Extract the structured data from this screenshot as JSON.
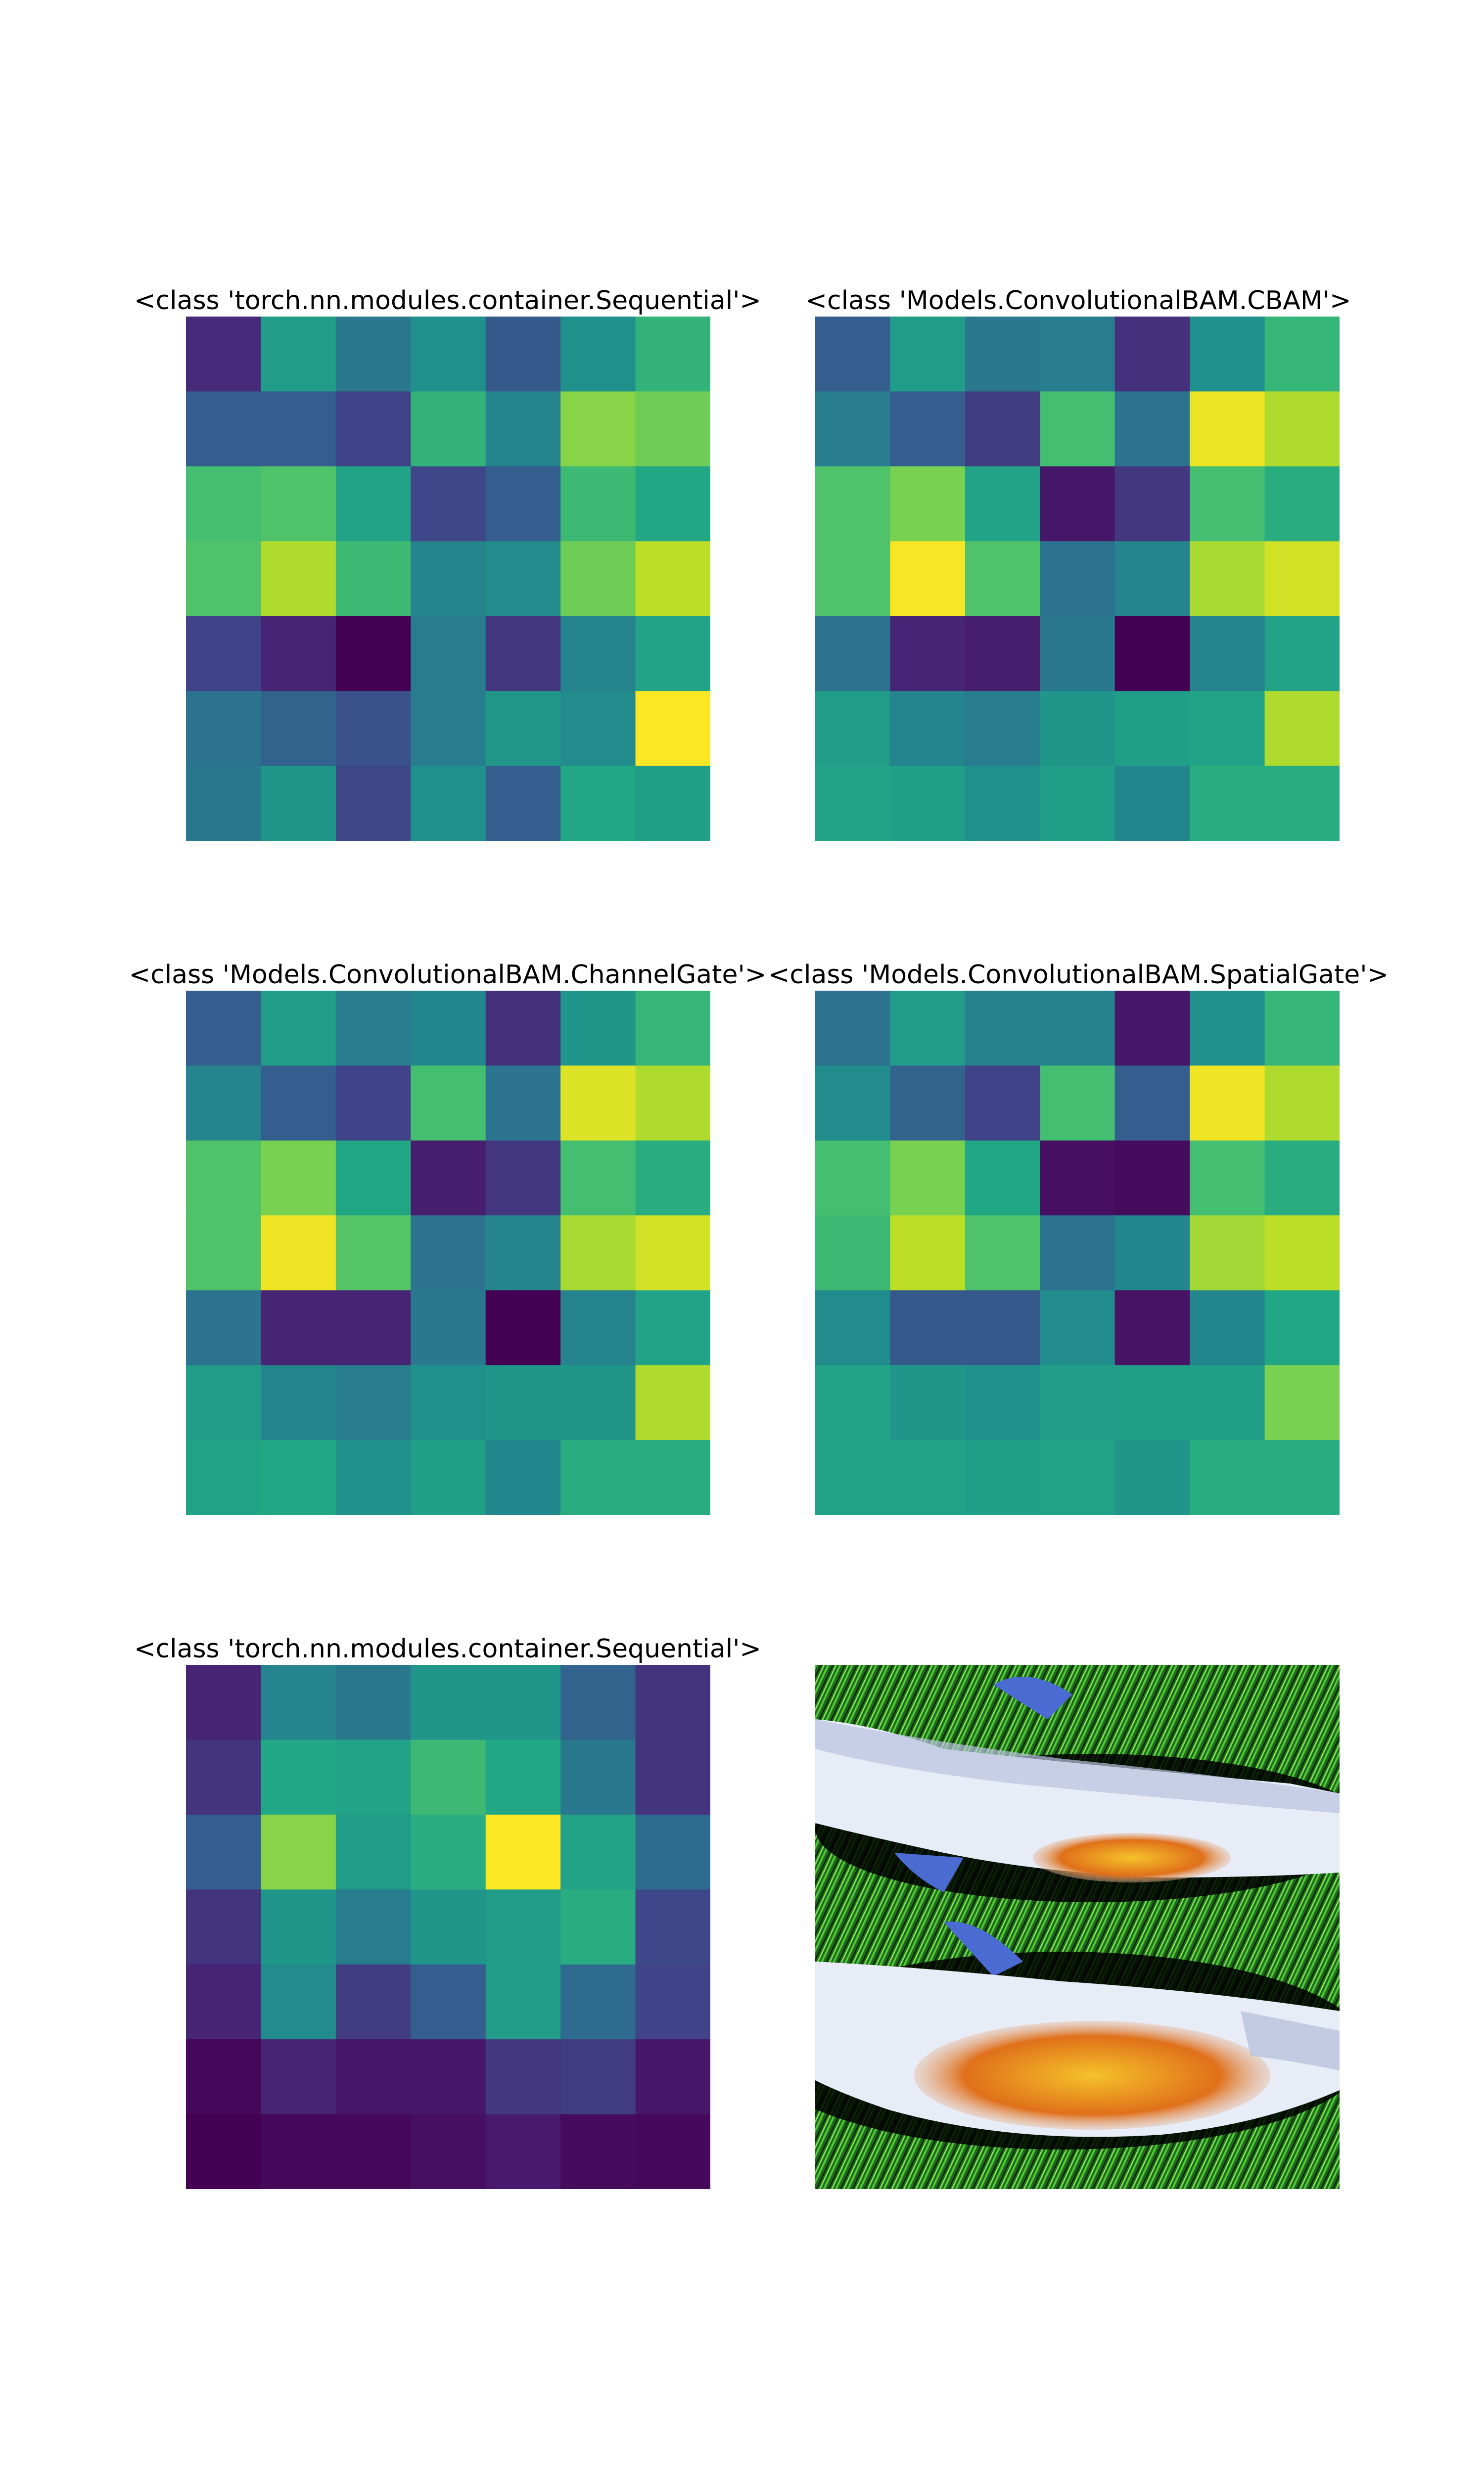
{
  "figure": {
    "colormap": "viridis",
    "value_range": [
      0,
      1
    ]
  },
  "chart_data": [
    {
      "type": "heatmap",
      "title": "<class 'torch.nn.modules.container.Sequential'>",
      "rows": 7,
      "cols": 7,
      "values": [
        [
          0.12,
          0.55,
          0.4,
          0.5,
          0.28,
          0.5,
          0.65
        ],
        [
          0.3,
          0.3,
          0.2,
          0.65,
          0.45,
          0.82,
          0.78
        ],
        [
          0.7,
          0.72,
          0.58,
          0.22,
          0.3,
          0.68,
          0.6
        ],
        [
          0.72,
          0.88,
          0.68,
          0.45,
          0.48,
          0.78,
          0.9
        ],
        [
          0.2,
          0.1,
          0.0,
          0.42,
          0.16,
          0.45,
          0.58
        ],
        [
          0.38,
          0.32,
          0.25,
          0.42,
          0.53,
          0.48,
          1.0
        ],
        [
          0.4,
          0.52,
          0.22,
          0.5,
          0.3,
          0.6,
          0.56
        ]
      ]
    },
    {
      "type": "heatmap",
      "title": "<class 'Models.ConvolutionalBAM.CBAM'>",
      "rows": 7,
      "cols": 7,
      "values": [
        [
          0.3,
          0.55,
          0.4,
          0.42,
          0.14,
          0.5,
          0.66
        ],
        [
          0.42,
          0.3,
          0.18,
          0.7,
          0.38,
          0.97,
          0.88
        ],
        [
          0.72,
          0.8,
          0.58,
          0.06,
          0.16,
          0.7,
          0.62
        ],
        [
          0.72,
          0.99,
          0.72,
          0.38,
          0.45,
          0.87,
          0.93
        ],
        [
          0.38,
          0.1,
          0.08,
          0.4,
          0.0,
          0.45,
          0.58
        ],
        [
          0.55,
          0.45,
          0.42,
          0.52,
          0.56,
          0.58,
          0.88
        ],
        [
          0.58,
          0.56,
          0.5,
          0.56,
          0.46,
          0.62,
          0.62
        ]
      ]
    },
    {
      "type": "heatmap",
      "title": "<class 'Models.ConvolutionalBAM.ChannelGate'>",
      "rows": 7,
      "cols": 7,
      "values": [
        [
          0.3,
          0.55,
          0.42,
          0.46,
          0.14,
          0.52,
          0.66
        ],
        [
          0.45,
          0.3,
          0.2,
          0.7,
          0.38,
          0.95,
          0.88
        ],
        [
          0.72,
          0.8,
          0.6,
          0.08,
          0.16,
          0.7,
          0.62
        ],
        [
          0.72,
          0.98,
          0.73,
          0.38,
          0.45,
          0.87,
          0.93
        ],
        [
          0.38,
          0.1,
          0.1,
          0.4,
          0.0,
          0.45,
          0.58
        ],
        [
          0.55,
          0.45,
          0.42,
          0.5,
          0.52,
          0.52,
          0.88
        ],
        [
          0.58,
          0.6,
          0.5,
          0.56,
          0.46,
          0.62,
          0.62
        ]
      ]
    },
    {
      "type": "heatmap",
      "title": "<class 'Models.ConvolutionalBAM.SpatialGate'>",
      "rows": 7,
      "cols": 7,
      "values": [
        [
          0.38,
          0.55,
          0.44,
          0.44,
          0.06,
          0.5,
          0.66
        ],
        [
          0.48,
          0.32,
          0.2,
          0.7,
          0.3,
          0.98,
          0.88
        ],
        [
          0.7,
          0.8,
          0.6,
          0.04,
          0.03,
          0.7,
          0.62
        ],
        [
          0.68,
          0.9,
          0.72,
          0.38,
          0.46,
          0.86,
          0.9
        ],
        [
          0.48,
          0.28,
          0.28,
          0.48,
          0.05,
          0.46,
          0.6
        ],
        [
          0.58,
          0.52,
          0.5,
          0.55,
          0.56,
          0.56,
          0.8
        ],
        [
          0.58,
          0.58,
          0.56,
          0.58,
          0.52,
          0.62,
          0.62
        ]
      ]
    },
    {
      "type": "heatmap",
      "title": "<class 'torch.nn.modules.container.Sequential'>",
      "rows": 7,
      "cols": 7,
      "values": [
        [
          0.1,
          0.45,
          0.4,
          0.52,
          0.52,
          0.32,
          0.15
        ],
        [
          0.15,
          0.6,
          0.58,
          0.68,
          0.6,
          0.4,
          0.15
        ],
        [
          0.3,
          0.82,
          0.55,
          0.62,
          1.0,
          0.58,
          0.35
        ],
        [
          0.15,
          0.52,
          0.42,
          0.52,
          0.55,
          0.62,
          0.22
        ],
        [
          0.1,
          0.48,
          0.18,
          0.3,
          0.55,
          0.35,
          0.2
        ],
        [
          0.02,
          0.1,
          0.06,
          0.06,
          0.16,
          0.18,
          0.06
        ],
        [
          0.0,
          0.02,
          0.02,
          0.04,
          0.07,
          0.03,
          0.02
        ]
      ]
    }
  ],
  "photo": {
    "subject": "two-fish-on-grass",
    "colors": {
      "grass_dark": "#0a2a0a",
      "grass": "#2e8b22",
      "grass_light": "#4fc83a",
      "fish_body": "#e8ecf6",
      "fish_shade": "#b9c3df",
      "fish_belly": "#f5c22a",
      "fish_orange": "#e0701a",
      "fin": "#4a6bd1",
      "shadow": "#000000"
    }
  }
}
